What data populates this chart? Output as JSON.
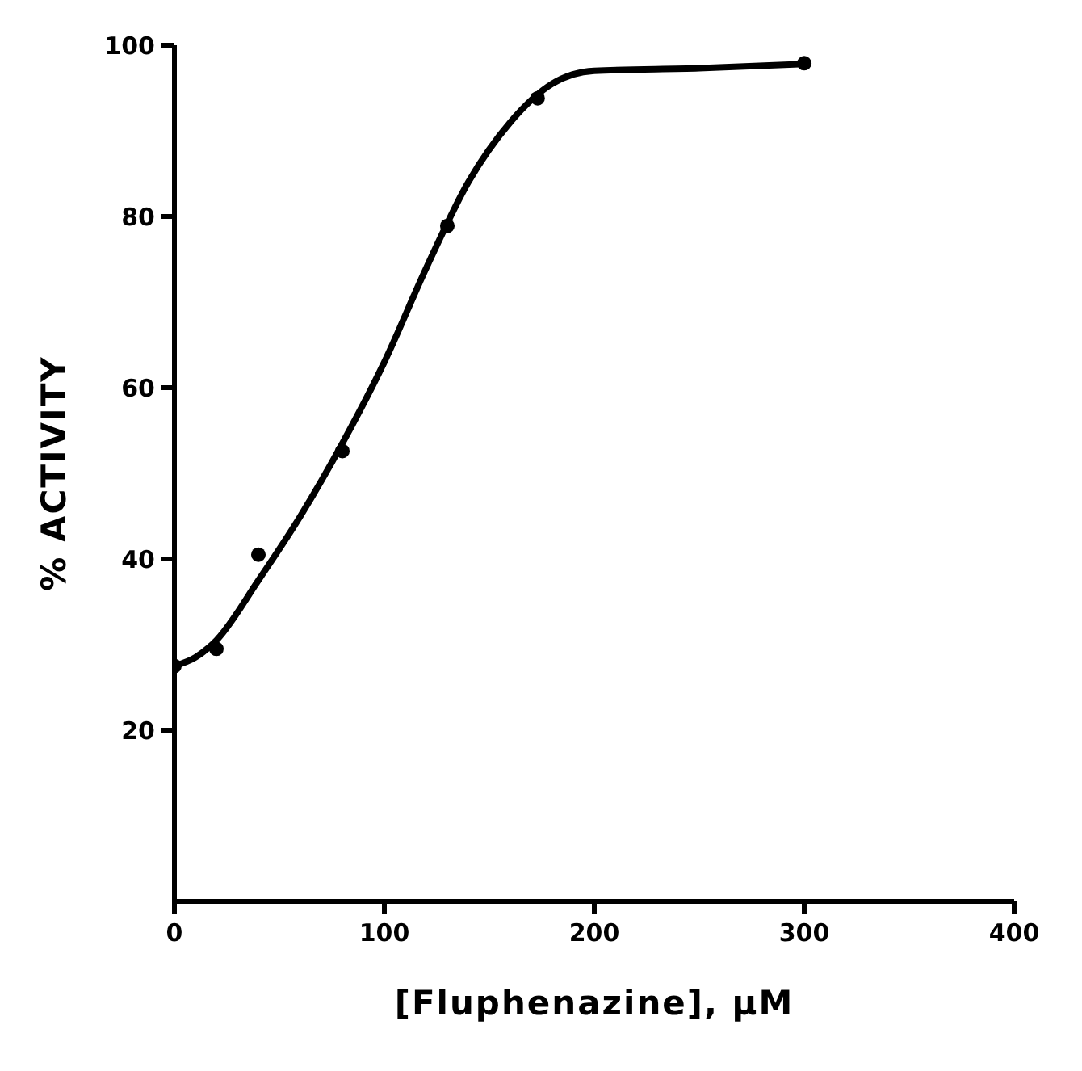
{
  "chart_data": {
    "type": "scatter",
    "xlabel": "[Fluphenazine], µM",
    "ylabel": "% ACTIVITY",
    "xlim": [
      0,
      400
    ],
    "xticks": [
      0,
      100,
      200,
      300,
      400
    ],
    "ylim": [
      0,
      100
    ],
    "yticks": [
      20,
      40,
      60,
      80,
      100
    ],
    "marker": "circle",
    "series": [
      {
        "color": "#000000",
        "x": [
          0,
          20,
          40,
          80,
          130,
          173,
          300
        ],
        "values": [
          27.5,
          29.5,
          40.5,
          52.6,
          78.9,
          93.8,
          97.9
        ]
      },
      {
        "type": "line",
        "color": "#000000",
        "marker": "none",
        "line_style": "solid",
        "x": [
          0,
          10,
          20,
          40,
          60,
          80,
          100,
          120,
          140,
          160,
          180,
          200,
          250,
          300
        ],
        "values": [
          27.5,
          28.5,
          30.5,
          37.5,
          45,
          53.5,
          63,
          74,
          84,
          91,
          95.5,
          97,
          97.3,
          97.8
        ]
      }
    ]
  }
}
